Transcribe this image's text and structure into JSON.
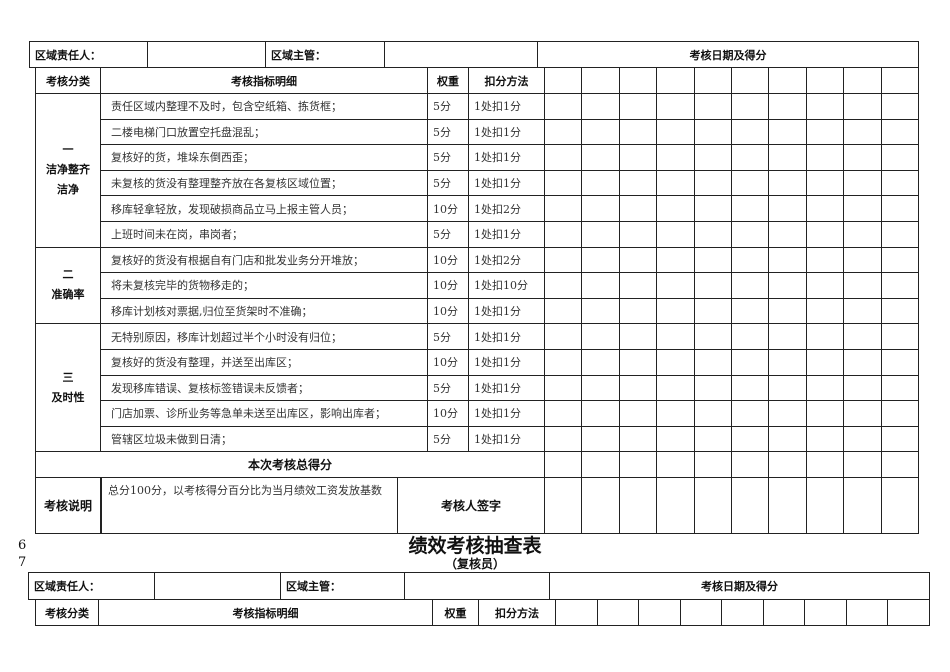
{
  "header": {
    "responsible_label": "区域责任人：",
    "supervisor_label": "区域主管：",
    "dates_label": "考核日期及得分"
  },
  "columns": {
    "category": "考核分类",
    "detail": "考核指标明细",
    "weight": "权重",
    "method": "扣分方法"
  },
  "sections": [
    {
      "num": "一",
      "name1": "洁净整齐",
      "name2": "洁净",
      "items": [
        {
          "detail": "责任区域内整理不及时，包含空纸箱、拣货框；",
          "weight": "5分",
          "method": "1处扣1分"
        },
        {
          "detail": "二楼电梯门口放置空托盘混乱；",
          "weight": "5分",
          "method": "1处扣1分"
        },
        {
          "detail": "复核好的货，堆垛东倒西歪；",
          "weight": "5分",
          "method": "1处扣1分"
        },
        {
          "detail": "未复核的货没有整理整齐放在各复核区域位置；",
          "weight": "5分",
          "method": "1处扣1分"
        },
        {
          "detail": "移库轻拿轻放，发现破损商品立马上报主管人员；",
          "weight": "10分",
          "method": "1处扣2分"
        },
        {
          "detail": "上班时间未在岗，串岗者；",
          "weight": "5分",
          "method": "1处扣1分"
        }
      ]
    },
    {
      "num": "二",
      "name1": "准确率",
      "name2": "",
      "items": [
        {
          "detail": "复核好的货没有根据自有门店和批发业务分开堆放；",
          "weight": "10分",
          "method": "1处扣2分"
        },
        {
          "detail": "将未复核完毕的货物移走的；",
          "weight": "10分",
          "method": "1处扣10分"
        },
        {
          "detail": "移库计划核对票据,归位至货架时不准确；",
          "weight": "10分",
          "method": "1处扣1分"
        }
      ]
    },
    {
      "num": "三",
      "name1": "及时性",
      "name2": "",
      "items": [
        {
          "detail": "无特别原因，移库计划超过半个小时没有归位；",
          "weight": "5分",
          "method": "1处扣1分"
        },
        {
          "detail": "复核好的货没有整理，并送至出库区；",
          "weight": "10分",
          "method": "1处扣1分"
        },
        {
          "detail": "发现移库错误、复核标签错误未反馈者；",
          "weight": "5分",
          "method": "1处扣1分"
        },
        {
          "detail": "门店加票、诊所业务等急单未送至出库区，影响出库者；",
          "weight": "10分",
          "method": "1处扣1分"
        },
        {
          "detail": "管辖区垃圾未做到日清；",
          "weight": "5分",
          "method": "1处扣1分"
        }
      ]
    }
  ],
  "total_label": "本次考核总得分",
  "note_label": "考核说明",
  "note_text": "总分100分，以考核得分百分比为当月绩效工资发放基数",
  "signature_label": "考核人签字",
  "page_numbers": [
    "6",
    "7"
  ],
  "next": {
    "title": "绩效考核抽查表",
    "subtitle": "（复核员）"
  }
}
